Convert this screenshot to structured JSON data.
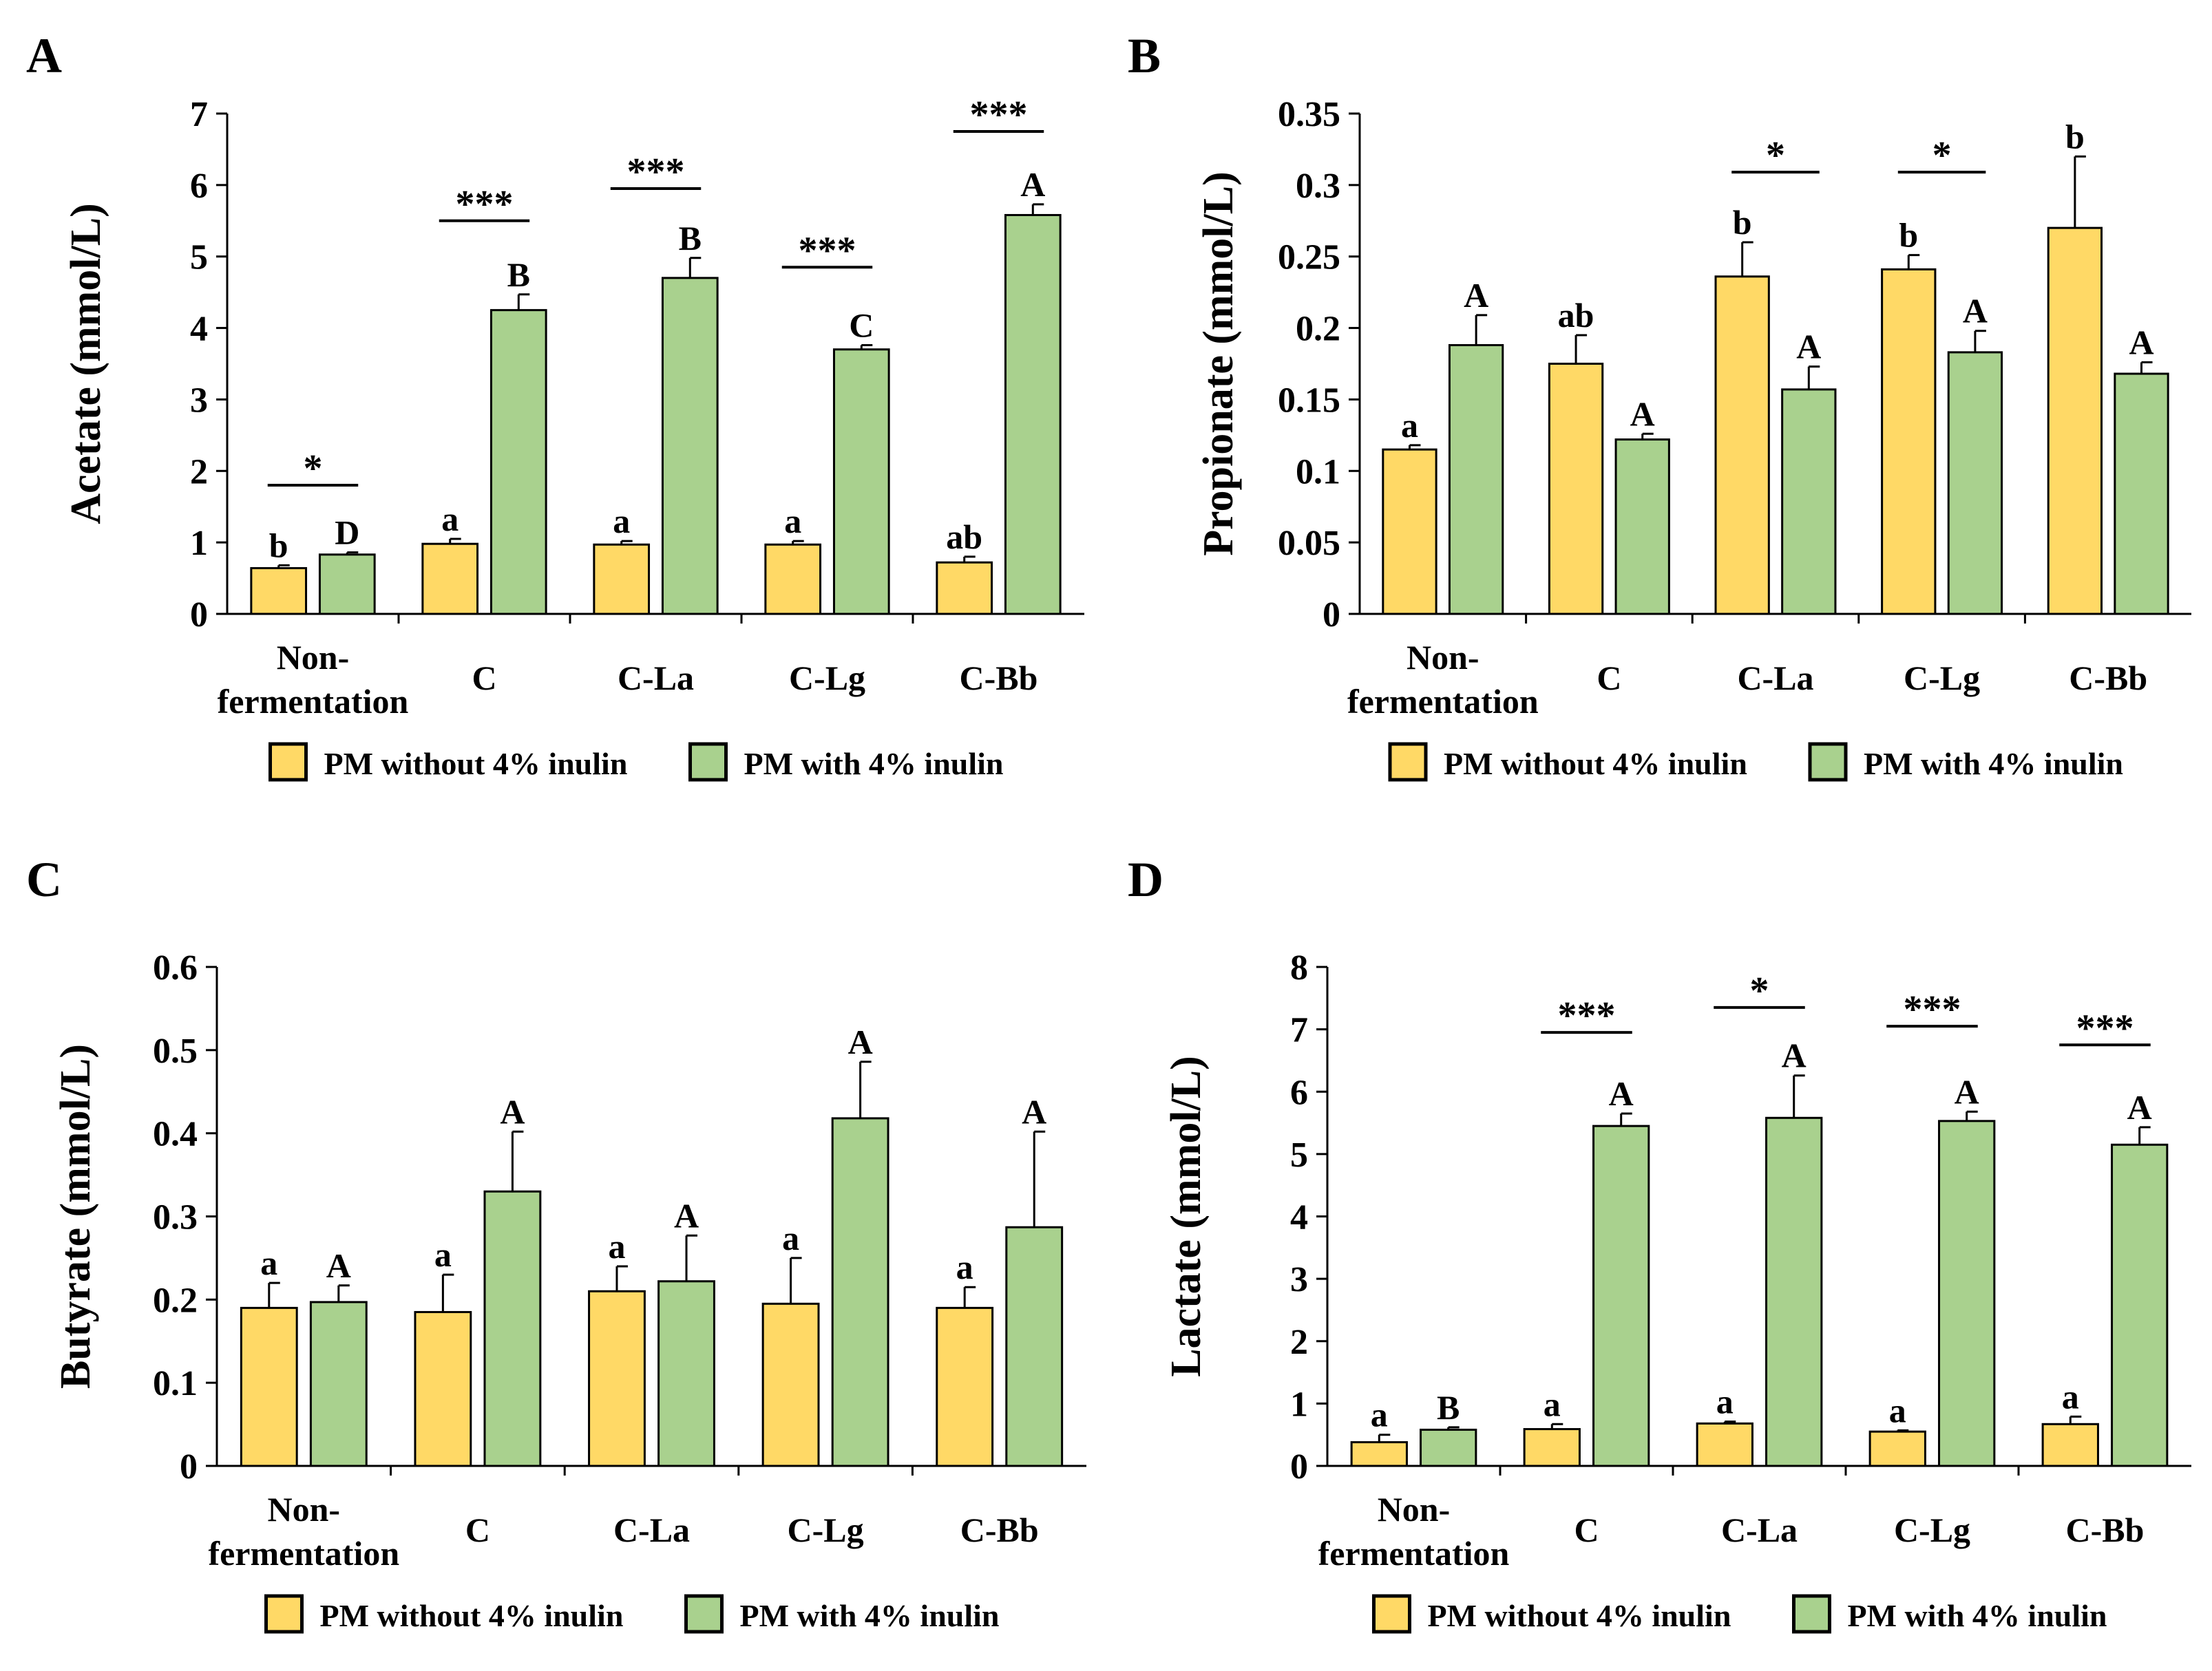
{
  "figure": {
    "colors": {
      "without": "#FFD966",
      "with": "#A9D18E",
      "stroke": "#000000"
    },
    "legend": {
      "without_label": "PM without 4% inulin",
      "with_label": "PM with 4% inulin"
    }
  },
  "chart_data": [
    {
      "panel": "A",
      "type": "bar",
      "ylabel": "Acetate (mmol/L)",
      "ylim": [
        0,
        7
      ],
      "yticks": [
        0,
        1,
        2,
        3,
        4,
        5,
        6,
        7
      ],
      "tick_labels": [
        "0",
        "1",
        "2",
        "3",
        "4",
        "5",
        "6",
        "7"
      ],
      "categories": [
        "Non-fermentation",
        "C",
        "C-La",
        "C-Lg",
        "C-Bb"
      ],
      "category_lines": [
        [
          "Non-",
          "fermentation"
        ],
        [
          "C"
        ],
        [
          "C-La"
        ],
        [
          "C-Lg"
        ],
        [
          "C-Bb"
        ]
      ],
      "series": [
        {
          "name": "PM without 4% inulin",
          "values": [
            0.64,
            0.98,
            0.97,
            0.97,
            0.72
          ],
          "errors": [
            0.04,
            0.07,
            0.05,
            0.05,
            0.08
          ],
          "letters": [
            "b",
            "a",
            "a",
            "a",
            "ab"
          ]
        },
        {
          "name": "PM with 4% inulin",
          "values": [
            0.83,
            4.25,
            4.7,
            3.7,
            5.58
          ],
          "errors": [
            0.03,
            0.22,
            0.28,
            0.06,
            0.15
          ],
          "letters": [
            "D",
            "B",
            "B",
            "C",
            "A"
          ]
        }
      ],
      "significance": [
        "*",
        "***",
        "***",
        "***",
        "***"
      ],
      "sig_levels": [
        1.8,
        5.5,
        5.95,
        4.85,
        6.75
      ]
    },
    {
      "panel": "B",
      "type": "bar",
      "ylabel": "Propionate (mmol/L)",
      "ylim": [
        0,
        0.35
      ],
      "yticks": [
        0,
        0.05,
        0.1,
        0.15,
        0.2,
        0.25,
        0.3,
        0.35
      ],
      "tick_labels": [
        "0",
        "0.05",
        "0.1",
        "0.15",
        "0.2",
        "0.25",
        "0.3",
        "0.35"
      ],
      "categories": [
        "Non-fermentation",
        "C",
        "C-La",
        "C-Lg",
        "C-Bb"
      ],
      "category_lines": [
        [
          "Non-",
          "fermentation"
        ],
        [
          "C"
        ],
        [
          "C-La"
        ],
        [
          "C-Lg"
        ],
        [
          "C-Bb"
        ]
      ],
      "series": [
        {
          "name": "PM without 4% inulin",
          "values": [
            0.115,
            0.175,
            0.236,
            0.241,
            0.27
          ],
          "errors": [
            0.003,
            0.02,
            0.024,
            0.01,
            0.05
          ],
          "letters": [
            "a",
            "ab",
            "b",
            "b",
            "b"
          ]
        },
        {
          "name": "PM with 4% inulin",
          "values": [
            0.188,
            0.122,
            0.157,
            0.183,
            0.168
          ],
          "errors": [
            0.021,
            0.004,
            0.016,
            0.015,
            0.008
          ],
          "letters": [
            "A",
            "A",
            "A",
            "A",
            "A"
          ]
        }
      ],
      "significance": [
        "",
        "",
        "*",
        "*",
        ""
      ],
      "sig_levels": [
        null,
        null,
        0.309,
        0.309,
        null
      ]
    },
    {
      "panel": "C",
      "type": "bar",
      "ylabel": "Butyrate (mmol/L)",
      "ylim": [
        0,
        0.6
      ],
      "yticks": [
        0,
        0.1,
        0.2,
        0.3,
        0.4,
        0.5,
        0.6
      ],
      "tick_labels": [
        "0",
        "0.1",
        "0.2",
        "0.3",
        "0.4",
        "0.5",
        "0.6"
      ],
      "categories": [
        "Non-fermentation",
        "C",
        "C-La",
        "C-Lg",
        "C-Bb"
      ],
      "category_lines": [
        [
          "Non-",
          "fermentation"
        ],
        [
          "C"
        ],
        [
          "C-La"
        ],
        [
          "C-Lg"
        ],
        [
          "C-Bb"
        ]
      ],
      "series": [
        {
          "name": "PM without 4% inulin",
          "values": [
            0.19,
            0.185,
            0.21,
            0.195,
            0.19
          ],
          "errors": [
            0.03,
            0.045,
            0.03,
            0.055,
            0.025
          ],
          "letters": [
            "a",
            "a",
            "a",
            "a",
            "a"
          ]
        },
        {
          "name": "PM with 4% inulin",
          "values": [
            0.197,
            0.33,
            0.222,
            0.418,
            0.287
          ],
          "errors": [
            0.02,
            0.072,
            0.055,
            0.068,
            0.115
          ],
          "letters": [
            "A",
            "A",
            "A",
            "A",
            "A"
          ]
        }
      ],
      "significance": [
        "",
        "",
        "",
        "",
        ""
      ],
      "sig_levels": [
        null,
        null,
        null,
        null,
        null
      ]
    },
    {
      "panel": "D",
      "type": "bar",
      "ylabel": "Lactate (mmol/L)",
      "ylim": [
        0,
        8
      ],
      "yticks": [
        0,
        1,
        2,
        3,
        4,
        5,
        6,
        7,
        8
      ],
      "tick_labels": [
        "0",
        "1",
        "2",
        "3",
        "4",
        "5",
        "6",
        "7",
        "8"
      ],
      "categories": [
        "Non-fermentation",
        "C",
        "C-La",
        "C-Lg",
        "C-Bb"
      ],
      "category_lines": [
        [
          "Non-",
          "fermentation"
        ],
        [
          "C"
        ],
        [
          "C-La"
        ],
        [
          "C-Lg"
        ],
        [
          "C-Bb"
        ]
      ],
      "series": [
        {
          "name": "PM without 4% inulin",
          "values": [
            0.38,
            0.59,
            0.68,
            0.55,
            0.67
          ],
          "errors": [
            0.12,
            0.08,
            0.03,
            0.02,
            0.12
          ],
          "letters": [
            "a",
            "a",
            "a",
            "a",
            "a"
          ]
        },
        {
          "name": "PM with 4% inulin",
          "values": [
            0.58,
            5.45,
            5.58,
            5.53,
            5.15
          ],
          "errors": [
            0.04,
            0.2,
            0.68,
            0.15,
            0.28
          ],
          "letters": [
            "B",
            "A",
            "A",
            "A",
            "A"
          ]
        }
      ],
      "significance": [
        "",
        "***",
        "*",
        "***",
        "***"
      ],
      "sig_levels": [
        null,
        6.95,
        7.35,
        7.05,
        6.75
      ]
    }
  ]
}
